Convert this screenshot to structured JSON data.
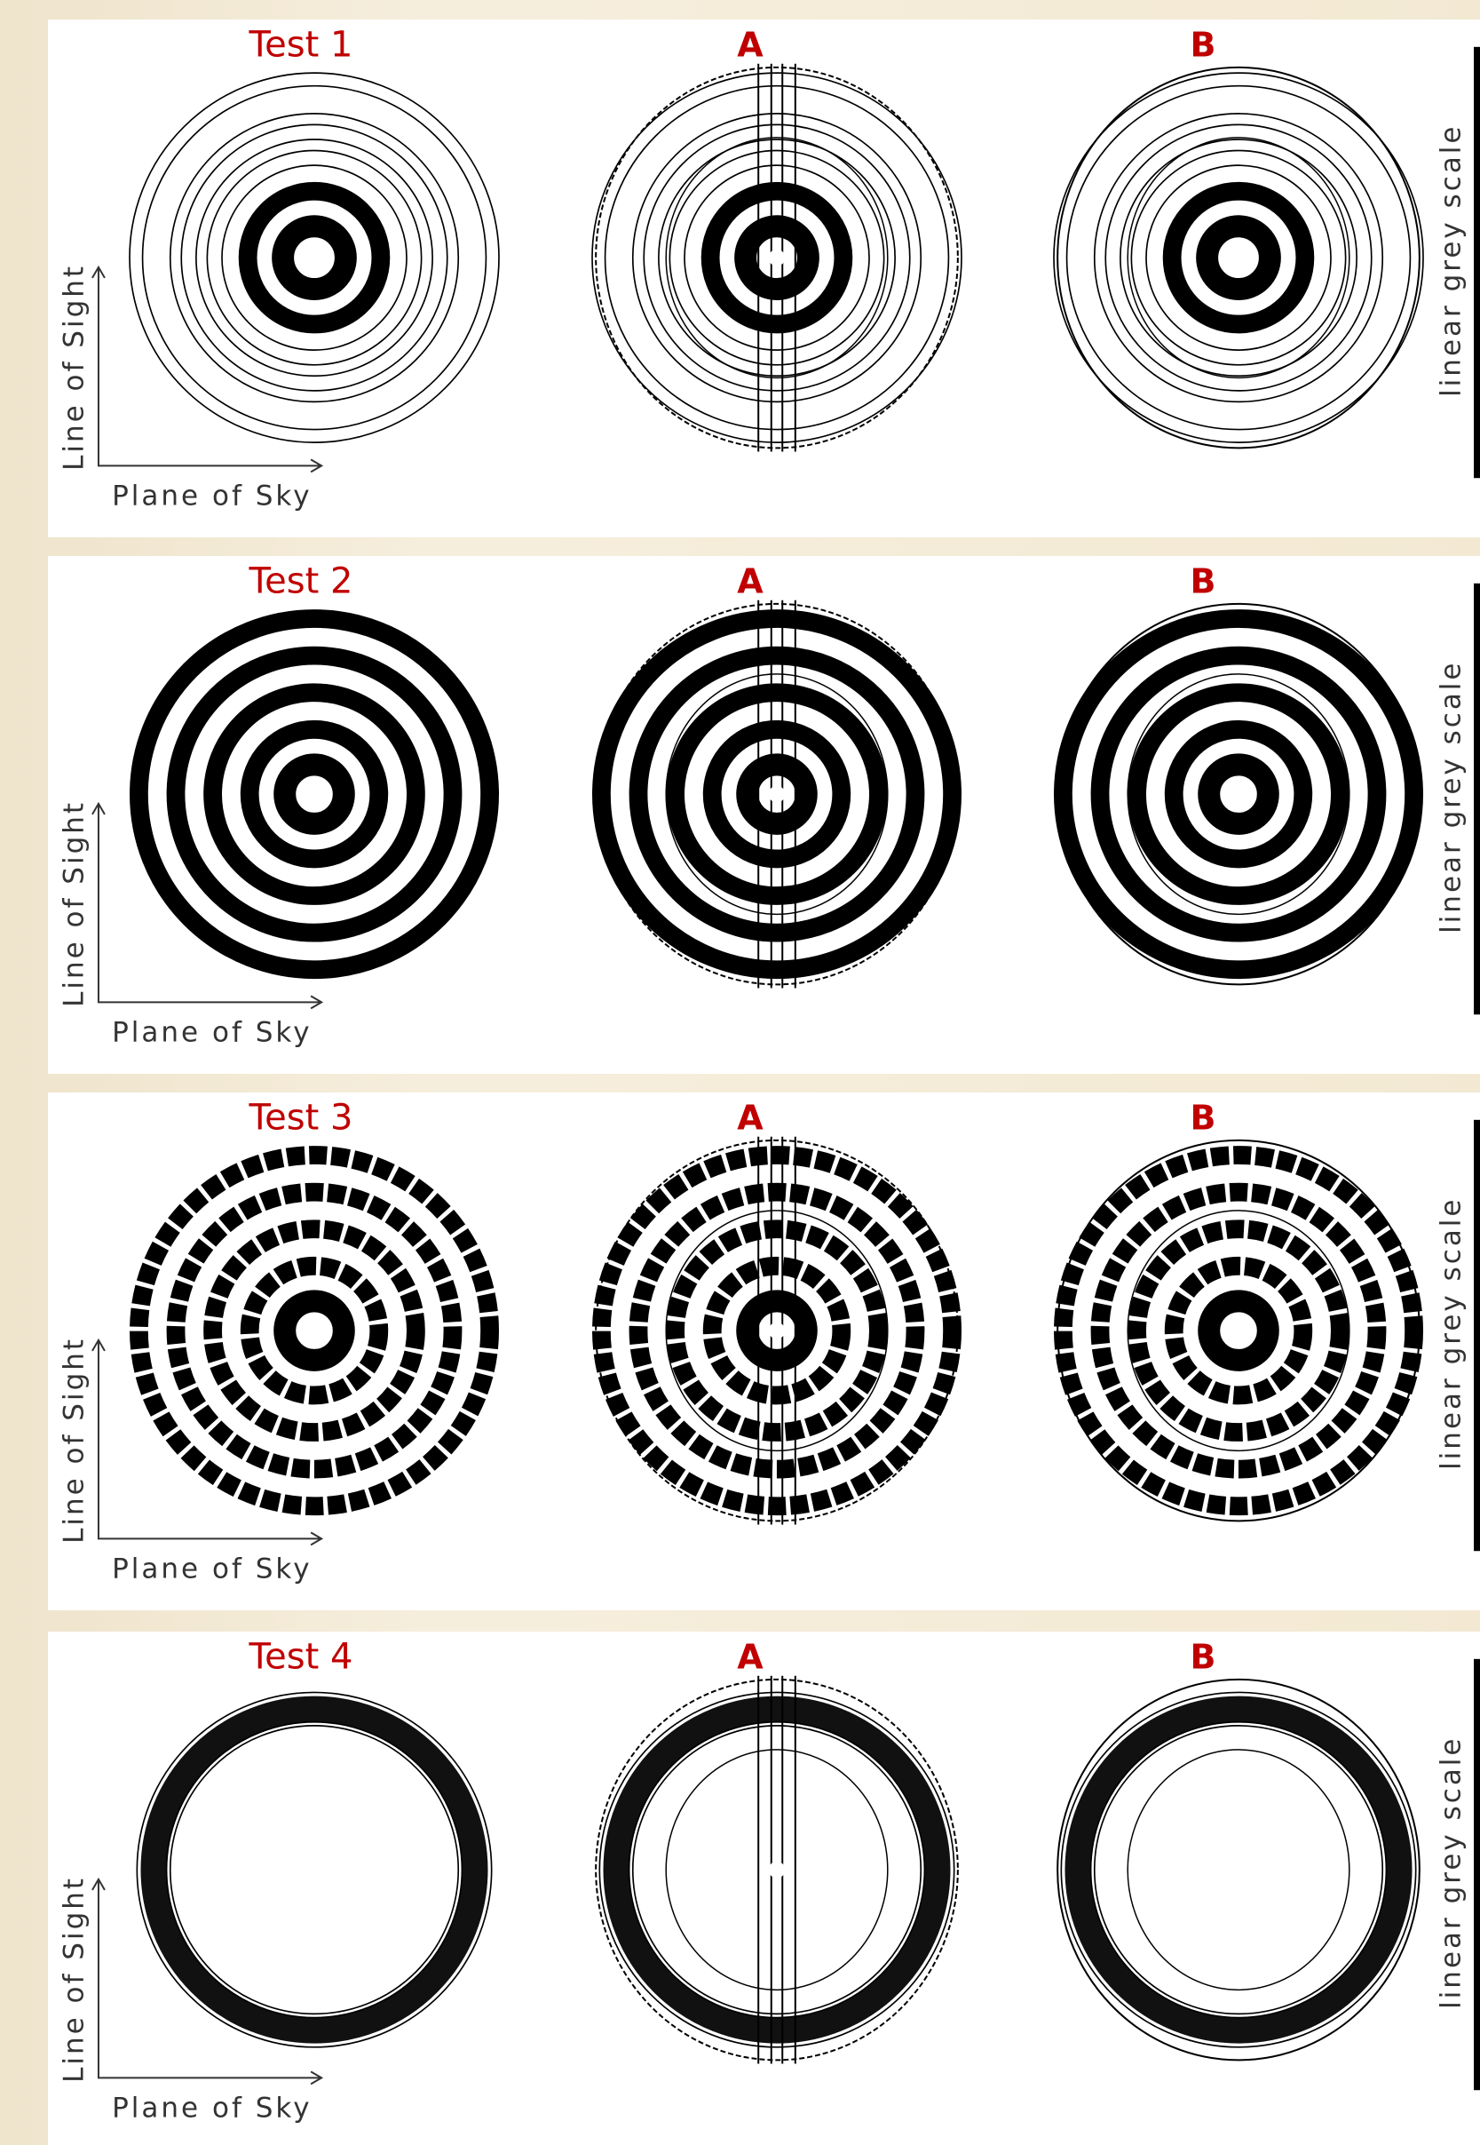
{
  "panels": [
    {
      "title": "Test 1",
      "a_label": "A",
      "b_label": "B",
      "y_axis_label": "Line of Sight",
      "x_axis_label": "Plane of Sky",
      "colorbar_label": "linear grey scale"
    },
    {
      "title": "Test 2",
      "a_label": "A",
      "b_label": "B",
      "y_axis_label": "Line of Sight",
      "x_axis_label": "Plane of Sky",
      "colorbar_label": "linear grey scale"
    },
    {
      "title": "Test 3",
      "a_label": "A",
      "b_label": "B",
      "y_axis_label": "Line of Sight",
      "x_axis_label": "Plane of Sky",
      "colorbar_label": "linear grey scale"
    },
    {
      "title": "Test 4",
      "a_label": "A",
      "b_label": "B",
      "y_axis_label": "Line of Sight",
      "x_axis_label": "Plane of Sky",
      "colorbar_label": "linear grey scale"
    }
  ]
}
